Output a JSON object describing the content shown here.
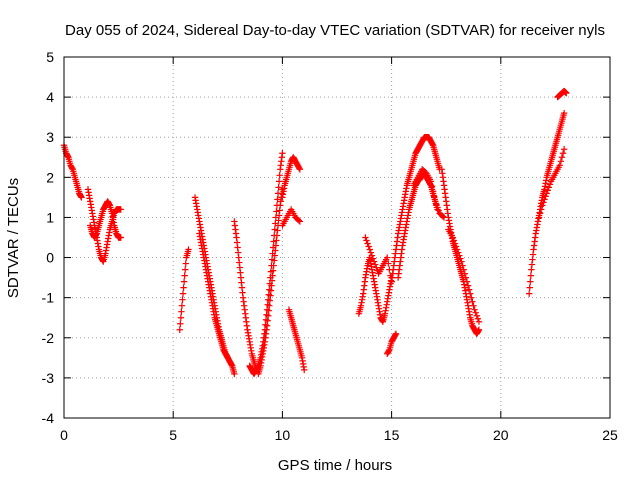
{
  "chart_data": {
    "type": "scatter",
    "title": "Day 055 of 2024, Sidereal Day-to-day VTEC variation (SDTVAR) for receiver nyls",
    "xlabel": "GPS time / hours",
    "ylabel": "SDTVAR / TECUs",
    "xlim": [
      0,
      25
    ],
    "ylim": [
      -4,
      5
    ],
    "xticks": [
      0,
      5,
      10,
      15,
      20,
      25
    ],
    "yticks": [
      -4,
      -3,
      -2,
      -1,
      0,
      1,
      2,
      3,
      4,
      5
    ],
    "grid": true,
    "marker": "+",
    "color": "#ff0000",
    "series": [
      {
        "name": "SDTVAR",
        "tracks": [
          {
            "x": [
              0.0,
              0.1,
              0.2,
              0.3,
              0.4,
              0.5,
              0.6,
              0.7,
              0.8
            ],
            "y": [
              2.8,
              2.6,
              2.5,
              2.3,
              2.2,
              2.0,
              1.8,
              1.6,
              1.5
            ]
          },
          {
            "x": [
              1.1,
              1.2,
              1.3,
              1.4,
              1.5,
              1.6,
              1.7,
              1.8,
              1.9,
              2.0,
              2.1,
              2.2,
              2.3,
              2.4,
              2.5,
              2.6
            ],
            "y": [
              1.7,
              1.4,
              1.1,
              0.8,
              0.5,
              0.2,
              0.0,
              -0.1,
              0.1,
              0.4,
              0.7,
              0.9,
              1.1,
              1.2,
              1.2,
              1.2
            ]
          },
          {
            "x": [
              1.2,
              1.3,
              1.4,
              1.5,
              1.6,
              1.7,
              1.8,
              1.9,
              2.0,
              2.1,
              2.2,
              2.3,
              2.4,
              2.5,
              2.6
            ],
            "y": [
              0.8,
              0.6,
              0.5,
              0.6,
              0.8,
              1.0,
              1.2,
              1.3,
              1.4,
              1.3,
              1.1,
              0.8,
              0.6,
              0.5,
              0.5
            ]
          },
          {
            "x": [
              5.3,
              5.4,
              5.5,
              5.6,
              5.7
            ],
            "y": [
              -1.8,
              -1.2,
              -0.6,
              0.0,
              0.2
            ]
          },
          {
            "x": [
              6.0,
              6.1,
              6.2,
              6.3,
              6.4,
              6.5,
              6.6,
              6.7,
              6.8,
              6.9,
              7.0,
              7.1,
              7.2,
              7.3,
              7.4,
              7.5,
              7.6,
              7.7,
              7.8
            ],
            "y": [
              1.5,
              1.2,
              0.9,
              0.6,
              0.3,
              0.0,
              -0.3,
              -0.6,
              -0.9,
              -1.2,
              -1.5,
              -1.8,
              -2.0,
              -2.2,
              -2.4,
              -2.5,
              -2.6,
              -2.7,
              -2.9
            ]
          },
          {
            "x": [
              6.2,
              6.3,
              6.4,
              6.5,
              6.6,
              6.7,
              6.8,
              6.9,
              7.0,
              7.1,
              7.2,
              7.3,
              7.4,
              7.5
            ],
            "y": [
              0.6,
              0.3,
              0.0,
              -0.3,
              -0.6,
              -0.9,
              -1.2,
              -1.5,
              -1.7,
              -1.9,
              -2.1,
              -2.3,
              -2.4,
              -2.5
            ]
          },
          {
            "x": [
              7.8,
              7.9,
              8.0,
              8.1,
              8.2,
              8.3,
              8.4,
              8.5,
              8.6,
              8.7,
              8.8
            ],
            "y": [
              0.9,
              0.5,
              0.0,
              -0.5,
              -1.0,
              -1.4,
              -1.8,
              -2.1,
              -2.4,
              -2.6,
              -2.8
            ]
          },
          {
            "x": [
              8.5,
              8.6,
              8.7,
              8.8,
              8.9,
              9.0,
              9.1,
              9.2,
              9.3,
              9.4,
              9.5,
              9.6,
              9.7,
              9.8,
              9.9,
              10.0
            ],
            "y": [
              -2.7,
              -2.8,
              -2.9,
              -2.8,
              -2.7,
              -2.5,
              -2.2,
              -1.8,
              -1.3,
              -0.8,
              -0.2,
              0.4,
              1.0,
              1.6,
              2.2,
              2.6
            ]
          },
          {
            "x": [
              8.9,
              9.0,
              9.1,
              9.2,
              9.3,
              9.4,
              9.5,
              9.6,
              9.7,
              9.8,
              9.9,
              10.0
            ],
            "y": [
              -2.9,
              -2.7,
              -2.4,
              -2.1,
              -1.7,
              -1.2,
              -0.7,
              -0.2,
              0.3,
              0.8,
              1.3,
              1.7
            ]
          },
          {
            "x": [
              10.0,
              10.1,
              10.2,
              10.3,
              10.4,
              10.5,
              10.6,
              10.7,
              10.8
            ],
            "y": [
              1.5,
              1.8,
              2.0,
              2.2,
              2.4,
              2.5,
              2.4,
              2.3,
              2.2
            ]
          },
          {
            "x": [
              10.0,
              10.2,
              10.4,
              10.6,
              10.8
            ],
            "y": [
              0.8,
              1.0,
              1.2,
              1.0,
              0.9
            ]
          },
          {
            "x": [
              10.3,
              10.4,
              10.5,
              10.6,
              10.7,
              10.8,
              10.9,
              11.0
            ],
            "y": [
              -1.3,
              -1.5,
              -1.7,
              -1.9,
              -2.1,
              -2.3,
              -2.5,
              -2.8
            ]
          },
          {
            "x": [
              13.5,
              13.6,
              13.7,
              13.8,
              13.9,
              14.0,
              14.1,
              14.2,
              14.3,
              14.4,
              14.5,
              14.6,
              14.7,
              14.8,
              14.9,
              15.0
            ],
            "y": [
              -1.4,
              -1.2,
              -0.9,
              -0.5,
              -0.2,
              0.0,
              -0.3,
              -0.6,
              -0.9,
              -1.2,
              -1.5,
              -1.6,
              -1.4,
              -1.1,
              -0.8,
              -0.5
            ]
          },
          {
            "x": [
              13.8,
              14.0,
              14.2,
              14.4,
              14.6,
              14.8,
              15.0
            ],
            "y": [
              0.5,
              0.2,
              -0.1,
              -0.4,
              -0.2,
              0.0,
              -0.6
            ]
          },
          {
            "x": [
              14.8,
              14.9,
              15.0,
              15.1,
              15.2
            ],
            "y": [
              -2.4,
              -2.3,
              -2.1,
              -2.0,
              -1.9
            ]
          },
          {
            "x": [
              15.0,
              15.1,
              15.2,
              15.3,
              15.4,
              15.5,
              15.6,
              15.7,
              15.8,
              15.9,
              16.0,
              16.1,
              16.2,
              16.3,
              16.4,
              16.5,
              16.6,
              16.7,
              16.8,
              16.9,
              17.0,
              17.1,
              17.2
            ],
            "y": [
              -0.6,
              -0.2,
              0.2,
              0.6,
              0.9,
              1.2,
              1.5,
              1.8,
              2.0,
              2.2,
              2.4,
              2.6,
              2.7,
              2.8,
              2.9,
              3.0,
              3.0,
              3.0,
              2.9,
              2.8,
              2.6,
              2.4,
              2.2
            ]
          },
          {
            "x": [
              15.3,
              15.4,
              15.5,
              15.6,
              15.7,
              15.8,
              15.9,
              16.0,
              16.1,
              16.2,
              16.3,
              16.4,
              16.5,
              16.6,
              16.7,
              16.8,
              16.9,
              17.0,
              17.1
            ],
            "y": [
              -0.5,
              -0.1,
              0.3,
              0.6,
              0.9,
              1.2,
              1.4,
              1.6,
              1.8,
              1.9,
              2.0,
              2.0,
              2.1,
              2.0,
              1.9,
              1.8,
              1.6,
              1.4,
              1.2
            ]
          },
          {
            "x": [
              16.0,
              16.2,
              16.4,
              16.6,
              16.8,
              17.0,
              17.2,
              17.4
            ],
            "y": [
              1.8,
              2.0,
              2.2,
              2.1,
              1.9,
              1.4,
              1.1,
              1.0
            ]
          },
          {
            "x": [
              17.3,
              17.4,
              17.5,
              17.6,
              17.7,
              17.8,
              17.9,
              18.0,
              18.1,
              18.2,
              18.3,
              18.4,
              18.5,
              18.6,
              18.7,
              18.8,
              18.9,
              19.0
            ],
            "y": [
              2.2,
              1.8,
              1.4,
              1.0,
              0.7,
              0.4,
              0.2,
              0.0,
              -0.2,
              -0.4,
              -0.6,
              -0.9,
              -1.2,
              -1.5,
              -1.7,
              -1.8,
              -1.9,
              -1.8
            ]
          },
          {
            "x": [
              17.6,
              17.8,
              18.0,
              18.2,
              18.4,
              18.6,
              18.8,
              19.0
            ],
            "y": [
              0.7,
              0.5,
              0.2,
              -0.1,
              -0.5,
              -0.9,
              -1.3,
              -1.6
            ]
          },
          {
            "x": [
              21.3,
              21.4,
              21.5,
              21.6,
              21.7,
              21.8,
              21.9,
              22.0,
              22.1,
              22.2,
              22.3,
              22.4,
              22.5,
              22.6,
              22.7,
              22.8,
              22.9
            ],
            "y": [
              -0.9,
              -0.3,
              0.2,
              0.6,
              0.9,
              1.2,
              1.5,
              1.7,
              2.0,
              2.2,
              2.4,
              2.6,
              2.8,
              3.0,
              3.2,
              3.4,
              3.6
            ]
          },
          {
            "x": [
              21.7,
              21.9,
              22.1,
              22.3,
              22.5,
              22.7,
              22.9
            ],
            "y": [
              0.9,
              1.3,
              1.6,
              1.9,
              2.1,
              2.3,
              2.7
            ]
          },
          {
            "x": [
              22.6,
              22.7,
              22.8,
              22.9,
              23.0
            ],
            "y": [
              4.0,
              4.05,
              4.1,
              4.15,
              4.1
            ]
          }
        ]
      }
    ]
  }
}
